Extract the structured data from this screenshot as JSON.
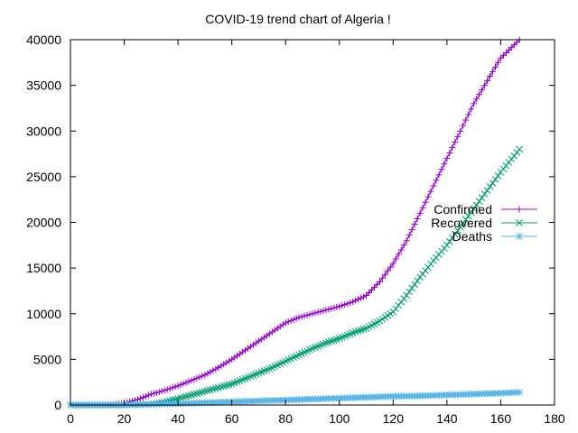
{
  "chart_data": {
    "type": "line",
    "title": "COVID-19 trend chart of Algeria !",
    "xlabel": "",
    "ylabel": "",
    "xlim": [
      0,
      180
    ],
    "ylim": [
      0,
      40000
    ],
    "xticks": [
      0,
      20,
      40,
      60,
      80,
      100,
      120,
      140,
      160,
      180
    ],
    "yticks": [
      0,
      5000,
      10000,
      15000,
      20000,
      25000,
      30000,
      35000,
      40000
    ],
    "grid": false,
    "legend_position": "right",
    "series": [
      {
        "name": "Confirmed",
        "color": "#9400d3",
        "marker": "plus",
        "points": [
          [
            0,
            0
          ],
          [
            10,
            20
          ],
          [
            15,
            60
          ],
          [
            20,
            200
          ],
          [
            25,
            600
          ],
          [
            30,
            1200
          ],
          [
            35,
            1600
          ],
          [
            40,
            2100
          ],
          [
            45,
            2700
          ],
          [
            50,
            3300
          ],
          [
            55,
            4100
          ],
          [
            60,
            5000
          ],
          [
            65,
            6000
          ],
          [
            70,
            7000
          ],
          [
            75,
            8000
          ],
          [
            80,
            9000
          ],
          [
            85,
            9600
          ],
          [
            90,
            10000
          ],
          [
            95,
            10400
          ],
          [
            100,
            10800
          ],
          [
            105,
            11300
          ],
          [
            110,
            12000
          ],
          [
            115,
            13500
          ],
          [
            120,
            15500
          ],
          [
            125,
            18000
          ],
          [
            130,
            21000
          ],
          [
            135,
            24000
          ],
          [
            140,
            27000
          ],
          [
            145,
            30000
          ],
          [
            150,
            33000
          ],
          [
            155,
            35500
          ],
          [
            160,
            38000
          ],
          [
            167,
            40000
          ]
        ]
      },
      {
        "name": "Recovered",
        "color": "#009e73",
        "marker": "x",
        "points": [
          [
            0,
            0
          ],
          [
            20,
            0
          ],
          [
            30,
            100
          ],
          [
            35,
            300
          ],
          [
            40,
            700
          ],
          [
            45,
            1100
          ],
          [
            50,
            1500
          ],
          [
            55,
            1900
          ],
          [
            60,
            2300
          ],
          [
            65,
            2900
          ],
          [
            70,
            3500
          ],
          [
            75,
            4100
          ],
          [
            80,
            4800
          ],
          [
            85,
            5500
          ],
          [
            90,
            6200
          ],
          [
            95,
            6800
          ],
          [
            100,
            7300
          ],
          [
            105,
            7900
          ],
          [
            110,
            8400
          ],
          [
            115,
            9200
          ],
          [
            120,
            10200
          ],
          [
            125,
            12000
          ],
          [
            130,
            14000
          ],
          [
            135,
            15800
          ],
          [
            140,
            17500
          ],
          [
            145,
            19500
          ],
          [
            150,
            21500
          ],
          [
            155,
            23500
          ],
          [
            160,
            25500
          ],
          [
            167,
            28000
          ]
        ]
      },
      {
        "name": "Deaths",
        "color": "#56b4e9",
        "marker": "star",
        "points": [
          [
            0,
            0
          ],
          [
            20,
            10
          ],
          [
            30,
            80
          ],
          [
            40,
            150
          ],
          [
            50,
            250
          ],
          [
            60,
            350
          ],
          [
            70,
            450
          ],
          [
            80,
            550
          ],
          [
            90,
            650
          ],
          [
            100,
            750
          ],
          [
            110,
            850
          ],
          [
            120,
            950
          ],
          [
            130,
            1000
          ],
          [
            140,
            1100
          ],
          [
            150,
            1200
          ],
          [
            160,
            1300
          ],
          [
            167,
            1400
          ]
        ]
      }
    ]
  }
}
